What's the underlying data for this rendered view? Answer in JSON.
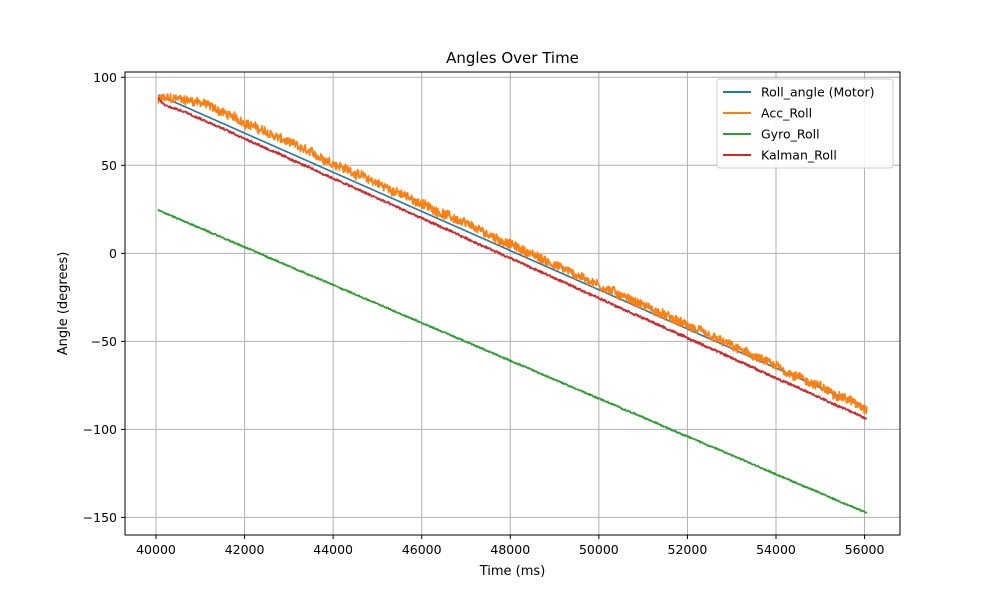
{
  "chart_data": {
    "type": "line",
    "title": "Angles Over Time",
    "xlabel": "Time (ms)",
    "ylabel": "Angle (degrees)",
    "xlim": [
      39300,
      56800
    ],
    "ylim": [
      -160,
      103
    ],
    "xticks": [
      40000,
      42000,
      44000,
      46000,
      48000,
      50000,
      52000,
      54000,
      56000
    ],
    "yticks": [
      -150,
      -100,
      -50,
      0,
      50,
      100
    ],
    "grid": true,
    "legend_position": "top-right",
    "series": [
      {
        "name": "Roll_angle (Motor)",
        "color": "#1f77b4",
        "x": [
          40050,
          56050
        ],
        "y": [
          90,
          -88
        ],
        "noise": 0
      },
      {
        "name": "Acc_Roll",
        "color": "#ff7f0e",
        "x": [
          40050,
          40100,
          40400,
          41000,
          56050
        ],
        "y": [
          86,
          88,
          88,
          86,
          -88
        ],
        "noise": 2.5
      },
      {
        "name": "Gyro_Roll",
        "color": "#2ca02c",
        "x": [
          40050,
          56050
        ],
        "y": [
          24.5,
          -147.5
        ],
        "noise": 0.4
      },
      {
        "name": "Kalman_Roll",
        "color": "#d62728",
        "x": [
          40050,
          40200,
          40700,
          56050
        ],
        "y": [
          88,
          84,
          80,
          -94
        ],
        "noise": 0.6
      }
    ]
  }
}
